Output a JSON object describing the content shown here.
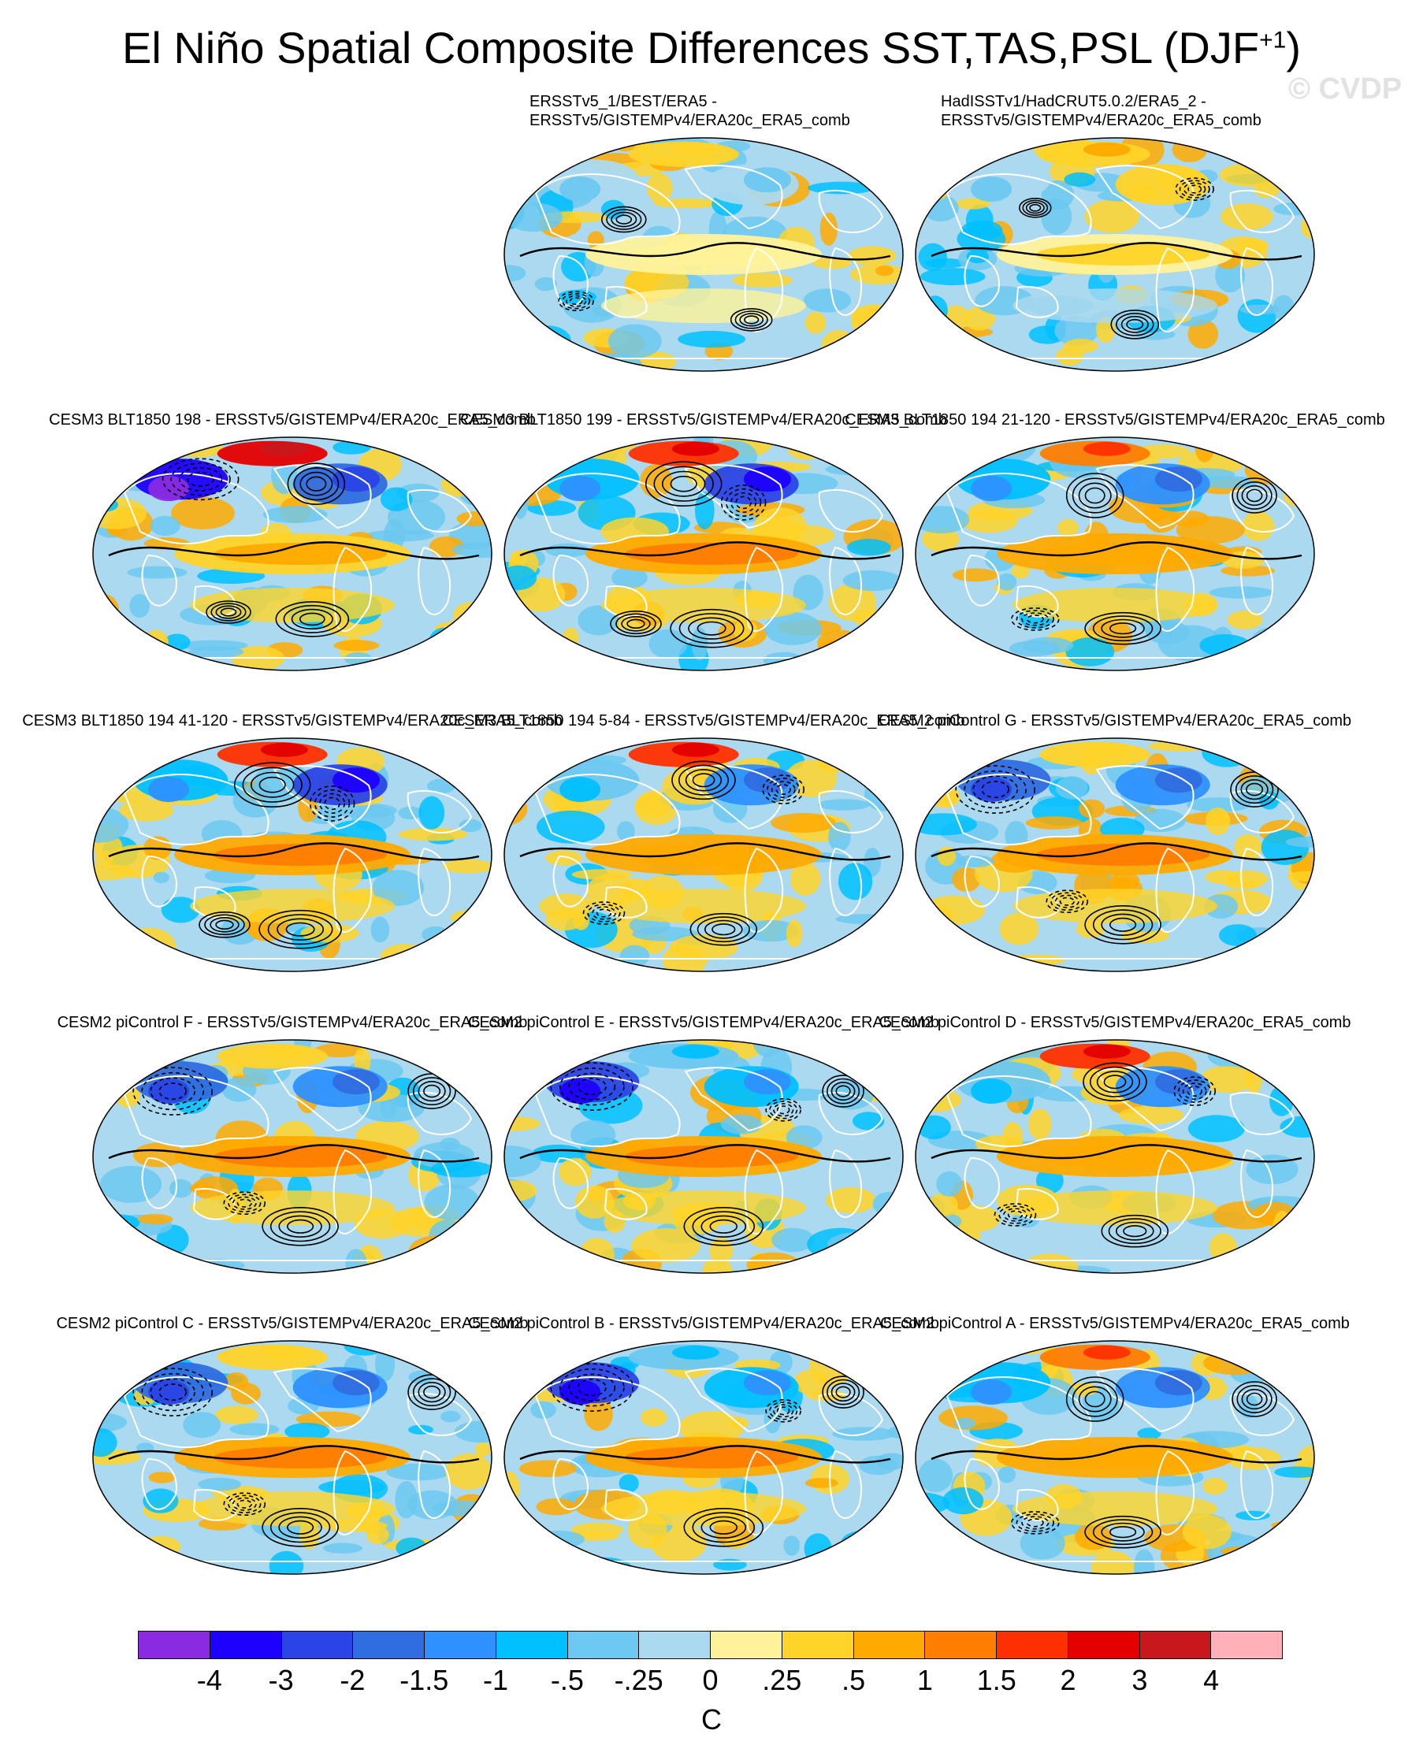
{
  "title": "El Niño Spatial Composite Differences SST,TAS,PSL (DJF",
  "title_sup": "+1",
  "title_close": ")",
  "watermark": "© CVDP",
  "panels": [
    {
      "label": "ERSSTv5_1/BEST/ERA5 -\nERSSTv5/GISTEMPv4/ERA20c_ERA5_comb",
      "pattern": "obs_1"
    },
    {
      "label": "HadISSTv1/HadCRUT5.0.2/ERA5_2 -\nERSSTv5/GISTEMPv4/ERA20c_ERA5_comb",
      "pattern": "obs_2"
    },
    {
      "label": "CESM3 BLT1850 198 - ERSSTv5/GISTEMPv4/ERA20c_ERA5_comb",
      "pattern": "model_a"
    },
    {
      "label": "CESM3 BLT1850 199 - ERSSTv5/GISTEMPv4/ERA20c_ERA5_comb",
      "pattern": "model_b"
    },
    {
      "label": "CESM3 BLT1850 194 21-120 - ERSSTv5/GISTEMPv4/ERA20c_ERA5_comb",
      "pattern": "model_c"
    },
    {
      "label": "CESM3 BLT1850 194 41-120 - ERSSTv5/GISTEMPv4/ERA20c_ERA5_comb",
      "pattern": "model_b"
    },
    {
      "label": "CESM3 BLT1850 194 5-84 - ERSSTv5/GISTEMPv4/ERA20c_ERA5_comb",
      "pattern": "model_d"
    },
    {
      "label": "CESM2 piControl G - ERSSTv5/GISTEMPv4/ERA20c_ERA5_comb",
      "pattern": "model_e"
    },
    {
      "label": "CESM2 piControl F - ERSSTv5/GISTEMPv4/ERA20c_ERA5_comb",
      "pattern": "model_e"
    },
    {
      "label": "CESM2 piControl E - ERSSTv5/GISTEMPv4/ERA20c_ERA5_comb",
      "pattern": "model_f"
    },
    {
      "label": "CESM2 piControl D - ERSSTv5/GISTEMPv4/ERA20c_ERA5_comb",
      "pattern": "model_d"
    },
    {
      "label": "CESM2 piControl C - ERSSTv5/GISTEMPv4/ERA20c_ERA5_comb",
      "pattern": "model_e"
    },
    {
      "label": "CESM2 piControl B - ERSSTv5/GISTEMPv4/ERA20c_ERA5_comb",
      "pattern": "model_f"
    },
    {
      "label": "CESM2 piControl A - ERSSTv5/GISTEMPv4/ERA20c_ERA5_comb",
      "pattern": "model_c"
    }
  ],
  "chart_data": {
    "type": "heatmap",
    "projection": "robinson-like global maps",
    "variables": [
      "SST",
      "TAS",
      "PSL"
    ],
    "season": "DJF+1",
    "colorbar": {
      "unit": "C",
      "tick_labels": [
        "-4",
        "-3",
        "-2",
        "-1.5",
        "-1",
        "-.5",
        "-.25",
        "0",
        ".25",
        ".5",
        "1",
        "1.5",
        "2",
        "3",
        "4"
      ],
      "levels": [
        -4,
        -3,
        -2,
        -1.5,
        -1,
        -0.5,
        -0.25,
        0,
        0.25,
        0.5,
        1,
        1.5,
        2,
        3,
        4
      ],
      "colors": [
        "#8a2be2",
        "#1e00ff",
        "#2a44e6",
        "#2f6de0",
        "#2d91ff",
        "#00c0ff",
        "#6cc8f0",
        "#abd9ef",
        "#fff29a",
        "#ffd428",
        "#ffaa00",
        "#ff7d00",
        "#ff3000",
        "#e40000",
        "#c8181e",
        "#ffb0b8"
      ]
    },
    "contour_variable": "PSL",
    "contour_style": "solid positive, dashed negative"
  }
}
